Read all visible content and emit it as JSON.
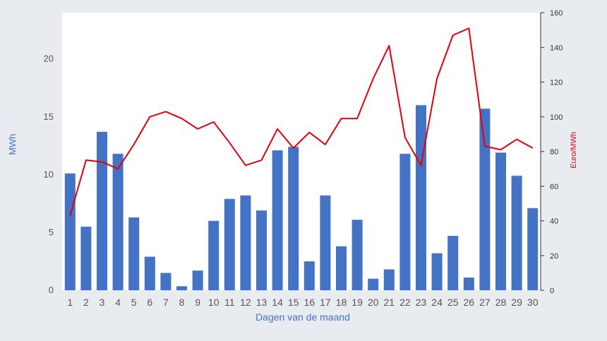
{
  "chart_data": {
    "type": "bar",
    "categories": [
      "1",
      "2",
      "3",
      "4",
      "5",
      "6",
      "7",
      "8",
      "9",
      "10",
      "11",
      "12",
      "13",
      "14",
      "15",
      "16",
      "17",
      "18",
      "19",
      "20",
      "21",
      "22",
      "23",
      "24",
      "25",
      "26",
      "27",
      "28",
      "29",
      "30"
    ],
    "xlabel": "Dagen van de maand",
    "ylabel": "MWh",
    "ylabel_right": "Euro/MWh",
    "ylim": [
      0,
      24
    ],
    "ylim_right": [
      0,
      160
    ],
    "yticks": [
      0,
      5,
      10,
      15,
      20
    ],
    "yticks_right": [
      0,
      20,
      40,
      60,
      80,
      100,
      120,
      140,
      160
    ],
    "grid": false,
    "series": [
      {
        "type": "bar",
        "axis": "left",
        "color": "#4472c4",
        "values": [
          10.1,
          5.5,
          13.7,
          11.8,
          6.3,
          2.9,
          1.5,
          0.35,
          1.7,
          6.0,
          7.9,
          8.2,
          6.9,
          12.1,
          12.4,
          2.5,
          8.2,
          3.8,
          6.1,
          1.0,
          1.8,
          11.8,
          16.0,
          3.2,
          4.7,
          1.1,
          15.7,
          11.9,
          9.9,
          7.1
        ]
      },
      {
        "type": "line",
        "axis": "right",
        "color": "#e0000f",
        "values": [
          43,
          75,
          74,
          70,
          84,
          100,
          103,
          99,
          93,
          97,
          85,
          72,
          75,
          93,
          82,
          91,
          84,
          99,
          99,
          122,
          141,
          88,
          72,
          122,
          147,
          151,
          83,
          81,
          87,
          82
        ]
      }
    ]
  }
}
